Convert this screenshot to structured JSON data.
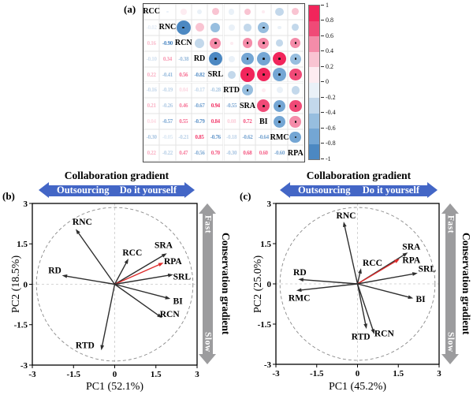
{
  "figure": {
    "panel_labels": {
      "a": "(a)",
      "b": "(b)",
      "c": "(c)"
    }
  },
  "colors": {
    "positive_max": "#F1255B",
    "negative_max": "#3F7FBE",
    "scale": [
      "#F1255B",
      "#F04A77",
      "#F48CA9",
      "#F9C4D2",
      "#FDECF1",
      "#EAF1F8",
      "#C3D8EB",
      "#97BEDF",
      "#74A6D4",
      "#4C88C2"
    ],
    "banner_blue": "#4366C6",
    "banner_gray": "#9C9C9E",
    "rpa_arrow_red": "#DD2C2C",
    "arrow_black": "#2e2e2e"
  },
  "chart_data": [
    {
      "type": "heatmap",
      "name": "correlation-matrix",
      "panel": "(a)",
      "variables": [
        "RCC",
        "RNC",
        "RCN",
        "RD",
        "SRL",
        "RTD",
        "SRA",
        "BI",
        "RMC",
        "RPA"
      ],
      "lower_triangle_values": [
        [],
        [
          -0.02
        ],
        [
          0.16,
          -0.9
        ],
        [
          -0.1,
          0.34,
          -0.38
        ],
        [
          0.22,
          -0.41,
          0.56,
          -0.82
        ],
        [
          -0.16,
          -0.19,
          0.04,
          -0.17,
          -0.28
        ],
        [
          0.21,
          -0.26,
          0.46,
          -0.67,
          0.94,
          -0.55
        ],
        [
          0.04,
          -0.57,
          0.55,
          -0.79,
          0.84,
          0.08,
          0.72
        ],
        [
          -0.3,
          -0.05,
          -0.21,
          0.85,
          -0.76,
          -0.18,
          -0.62,
          -0.64
        ],
        [
          0.22,
          -0.22,
          0.47,
          -0.56,
          0.7,
          -0.3,
          0.68,
          0.6,
          -0.6
        ]
      ],
      "sig_dot_threshold": 0.45,
      "colorbar_ticks": [
        "1",
        "0.8",
        "0.6",
        "0.4",
        "0.2",
        "0",
        "-0.2",
        "-0.4",
        "-0.6",
        "-0.8",
        "-1"
      ]
    },
    {
      "type": "scatter",
      "name": "pca-biplot-b",
      "panel": "(b)",
      "xlabel": "PC1 (52.1%)",
      "ylabel": "PC2 (18.5%)",
      "xlim": [
        -3,
        3
      ],
      "ylim": [
        -3,
        3
      ],
      "ticks": [
        -3,
        -1.5,
        0,
        1.5,
        3
      ],
      "tick_labels": [
        "-3",
        "-1.5",
        "0",
        "1.5",
        "3"
      ],
      "circle_radius": 2.85,
      "top_gradient": {
        "title": "Collaboration gradient",
        "left": "Outsourcing",
        "right": "Do it yourself"
      },
      "right_gradient": {
        "title": "Conservation gradient",
        "top": "Fast",
        "bottom": "Slow"
      },
      "vectors": [
        {
          "name": "RNC",
          "x": -1.42,
          "y": 2.05,
          "lx": -1.18,
          "ly": 2.32,
          "color": "black"
        },
        {
          "name": "RD",
          "x": -1.92,
          "y": 0.33,
          "lx": -2.18,
          "ly": 0.52,
          "color": "black"
        },
        {
          "name": "RCC",
          "x": 0.5,
          "y": 0.95,
          "lx": 0.64,
          "ly": 1.18,
          "color": "black"
        },
        {
          "name": "SRA",
          "x": 1.9,
          "y": 1.15,
          "lx": 1.78,
          "ly": 1.47,
          "color": "black"
        },
        {
          "name": "RPA",
          "x": 1.78,
          "y": 0.8,
          "lx": 2.12,
          "ly": 0.86,
          "color": "red"
        },
        {
          "name": "SRL",
          "x": 2.13,
          "y": 0.36,
          "lx": 2.45,
          "ly": 0.3,
          "color": "black"
        },
        {
          "name": "BI",
          "x": 2.03,
          "y": -0.54,
          "lx": 2.3,
          "ly": -0.62,
          "color": "black"
        },
        {
          "name": "RCN",
          "x": 1.73,
          "y": -1.25,
          "lx": 2.0,
          "ly": -1.1,
          "color": "black"
        },
        {
          "name": "RTD",
          "x": -0.49,
          "y": -2.45,
          "lx": -1.08,
          "ly": -2.26,
          "color": "black"
        }
      ]
    },
    {
      "type": "scatter",
      "name": "pca-biplot-c",
      "panel": "(c)",
      "xlabel": "PC1 (45.2%)",
      "ylabel": "PC2 (25.0%)",
      "xlim": [
        -3,
        3
      ],
      "ylim": [
        -3,
        3
      ],
      "ticks": [
        -3,
        -1.5,
        0,
        1.5,
        3
      ],
      "tick_labels": [
        "-3",
        "-1.5",
        "0",
        "1.5",
        "3"
      ],
      "circle_radius": 2.85,
      "top_gradient": {
        "title": "Collaboration gradient",
        "left": "Outsourcing",
        "right": "Do it yourself"
      },
      "right_gradient": {
        "title": "Conservation gradient",
        "top": "Fast",
        "bottom": "Slow"
      },
      "vectors": [
        {
          "name": "RNC",
          "x": -0.51,
          "y": 2.32,
          "lx": -0.42,
          "ly": 2.56,
          "color": "black"
        },
        {
          "name": "RD",
          "x": -2.18,
          "y": 0.17,
          "lx": -2.12,
          "ly": 0.44,
          "color": "black"
        },
        {
          "name": "RMC",
          "x": -2.25,
          "y": -0.25,
          "lx": -2.14,
          "ly": -0.52,
          "color": "black"
        },
        {
          "name": "RCC",
          "x": 0.13,
          "y": 0.58,
          "lx": 0.55,
          "ly": 0.8,
          "color": "black"
        },
        {
          "name": "SRA",
          "x": 1.85,
          "y": 1.17,
          "lx": 1.98,
          "ly": 1.4,
          "color": "black"
        },
        {
          "name": "RPA",
          "x": 1.55,
          "y": 0.93,
          "lx": 1.98,
          "ly": 0.9,
          "color": "red"
        },
        {
          "name": "SRL",
          "x": 2.21,
          "y": 0.4,
          "lx": 2.56,
          "ly": 0.58,
          "color": "black"
        },
        {
          "name": "BI",
          "x": 2.05,
          "y": -0.54,
          "lx": 2.32,
          "ly": -0.56,
          "color": "black"
        },
        {
          "name": "RCN",
          "x": 0.62,
          "y": -1.88,
          "lx": 0.98,
          "ly": -1.84,
          "color": "black"
        },
        {
          "name": "RTD",
          "x": 0.33,
          "y": -1.68,
          "lx": 0.12,
          "ly": -1.96,
          "color": "black"
        }
      ]
    }
  ]
}
